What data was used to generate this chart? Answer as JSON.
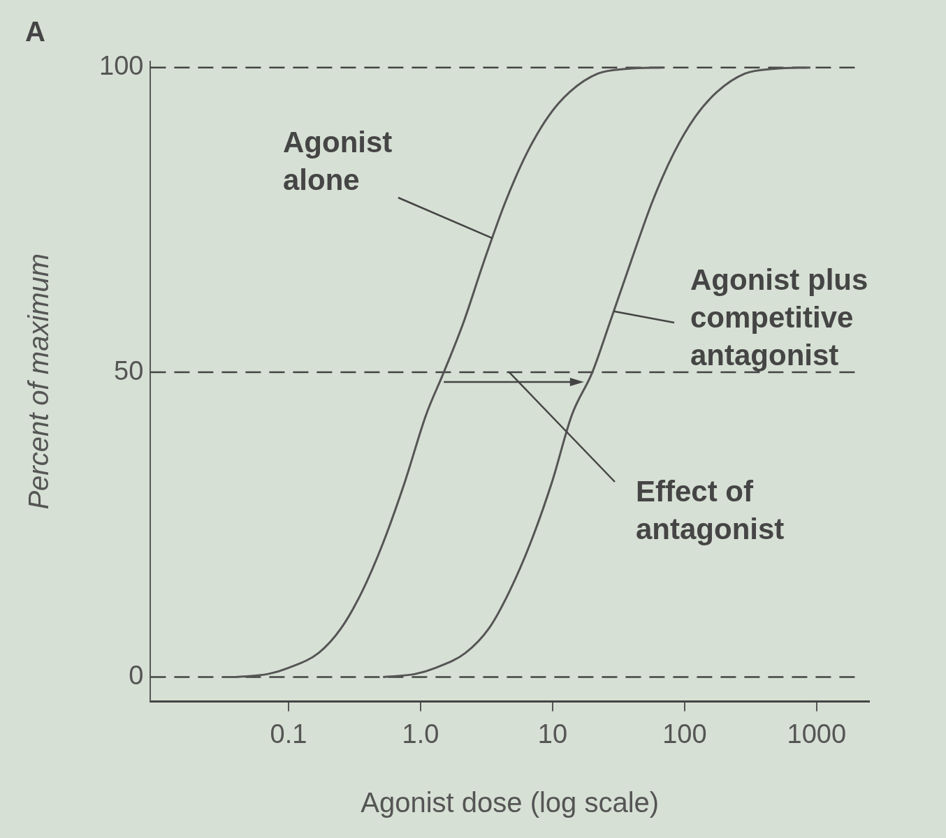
{
  "chart_data": {
    "type": "line",
    "xlabel": "Agonist dose (log scale)",
    "ylabel": "Percent of maximum",
    "log": "x",
    "xlim": [
      0.009,
      2500
    ],
    "xticks": [
      0.1,
      {
        "value": 1,
        "label": "1.0"
      },
      10,
      100,
      1000
    ],
    "ylim": [
      -4,
      101
    ],
    "yticks": [
      0,
      50,
      100
    ],
    "grid": false,
    "legend": false,
    "marker": "none",
    "line_style": "solid",
    "series": [
      {
        "color": "#555555",
        "x": [
          0.04,
          0.07,
          0.1,
          0.17,
          0.25,
          0.36,
          0.52,
          0.76,
          1.1,
          1.5,
          2.1,
          3.0,
          4.4,
          6.4,
          9.3,
          13.5,
          22,
          37,
          69
        ],
        "values": [
          0,
          0.5,
          1.5,
          4,
          8,
          14,
          22,
          32,
          43,
          50,
          58,
          68,
          78,
          86,
          92,
          96,
          99,
          99.8,
          100
        ]
      },
      {
        "color": "#555555",
        "x": [
          0.52,
          0.91,
          1.3,
          2.2,
          3.3,
          4.7,
          6.8,
          9.9,
          14,
          20,
          27,
          39,
          57,
          83,
          121,
          176,
          286,
          481,
          897
        ],
        "values": [
          0,
          0.5,
          1.5,
          4,
          8,
          14,
          22,
          32,
          43,
          50,
          58,
          68,
          78,
          86,
          92,
          96,
          99,
          99.8,
          100
        ]
      }
    ],
    "ref_lines": [
      {
        "axis": "y",
        "value": 0,
        "line_style": "dashed",
        "color": "#444444"
      },
      {
        "axis": "y",
        "value": 50,
        "line_style": "dashed",
        "color": "#444444"
      },
      {
        "axis": "y",
        "value": 100,
        "line_style": "dashed",
        "color": "#444444"
      }
    ],
    "annotations": [
      "A",
      {
        "text": "Agonist\nalone",
        "x": 3.5,
        "y": 72
      },
      {
        "text": "Agonist plus\ncompetitive\nantagonist",
        "x": 29,
        "y": 60
      },
      {
        "text": "Effect of\nantagonist",
        "x": 4.7,
        "y": 50
      }
    ]
  }
}
